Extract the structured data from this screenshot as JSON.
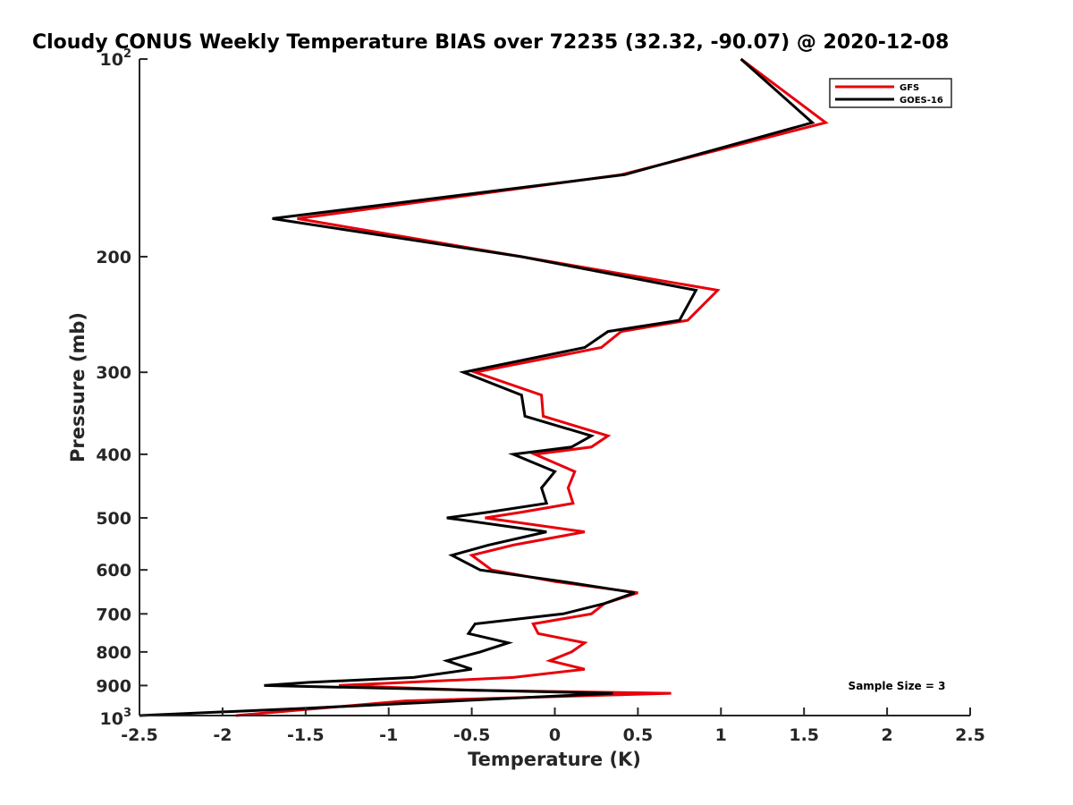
{
  "chart_data": {
    "type": "line",
    "title": "Cloudy CONUS Weekly Temperature BIAS over 72235 (32.32, -90.07) @ 2020-12-08",
    "xlabel": "Temperature (K)",
    "ylabel": "Pressure (mb)",
    "xlim": [
      -2.5,
      2.5
    ],
    "ylim": [
      100,
      1000
    ],
    "y_scale": "log",
    "y_reversed": true,
    "x_ticks": [
      -2.5,
      -2,
      -1.5,
      -1,
      -0.5,
      0,
      0.5,
      1,
      1.5,
      2,
      2.5
    ],
    "x_tick_labels": [
      "-2.5",
      "-2",
      "-1.5",
      "-1",
      "-0.5",
      "0",
      "0.5",
      "1",
      "1.5",
      "2",
      "2.5"
    ],
    "y_ticks": [
      200,
      300,
      400,
      500,
      600,
      700,
      800,
      900
    ],
    "y_tick_labels": [
      "200",
      "300",
      "400",
      "500",
      "600",
      "700",
      "800",
      "900"
    ],
    "y_tick_min": {
      "base": "10",
      "exp": "2"
    },
    "y_tick_max": {
      "base": "10",
      "exp": "3"
    },
    "annotation": "Sample Size = 3",
    "legend_position": "top-right",
    "series": [
      {
        "name": "GFS",
        "color": "#e8000b",
        "points": [
          [
            1.12,
            100
          ],
          [
            1.63,
            125
          ],
          [
            0.4,
            150
          ],
          [
            -1.55,
            175
          ],
          [
            -0.2,
            200
          ],
          [
            0.98,
            225
          ],
          [
            0.8,
            250
          ],
          [
            0.4,
            260
          ],
          [
            0.28,
            275
          ],
          [
            -0.48,
            300
          ],
          [
            -0.08,
            325
          ],
          [
            -0.07,
            350
          ],
          [
            0.32,
            375
          ],
          [
            0.22,
            390
          ],
          [
            -0.12,
            400
          ],
          [
            0.12,
            425
          ],
          [
            0.08,
            450
          ],
          [
            0.11,
            475
          ],
          [
            -0.2,
            490
          ],
          [
            -0.42,
            500
          ],
          [
            0.18,
            525
          ],
          [
            -0.25,
            550
          ],
          [
            -0.5,
            570
          ],
          [
            -0.38,
            600
          ],
          [
            0.0,
            625
          ],
          [
            0.5,
            650
          ],
          [
            0.3,
            675
          ],
          [
            0.22,
            700
          ],
          [
            -0.13,
            725
          ],
          [
            -0.1,
            750
          ],
          [
            0.18,
            775
          ],
          [
            0.1,
            800
          ],
          [
            -0.03,
            825
          ],
          [
            0.18,
            850
          ],
          [
            -0.25,
            875
          ],
          [
            -1.3,
            900
          ],
          [
            -0.5,
            915
          ],
          [
            0.7,
            925
          ],
          [
            -0.9,
            950
          ],
          [
            -1.92,
            1000
          ]
        ]
      },
      {
        "name": "GOES-16",
        "color": "#000000",
        "points": [
          [
            1.12,
            100
          ],
          [
            1.55,
            125
          ],
          [
            0.42,
            150
          ],
          [
            -1.7,
            175
          ],
          [
            -0.2,
            200
          ],
          [
            0.85,
            225
          ],
          [
            0.75,
            250
          ],
          [
            0.32,
            260
          ],
          [
            0.18,
            275
          ],
          [
            -0.55,
            300
          ],
          [
            -0.2,
            325
          ],
          [
            -0.18,
            350
          ],
          [
            0.22,
            375
          ],
          [
            0.1,
            390
          ],
          [
            -0.25,
            400
          ],
          [
            0.0,
            425
          ],
          [
            -0.08,
            450
          ],
          [
            -0.05,
            475
          ],
          [
            -0.4,
            490
          ],
          [
            -0.65,
            500
          ],
          [
            -0.05,
            525
          ],
          [
            -0.4,
            550
          ],
          [
            -0.62,
            570
          ],
          [
            -0.45,
            600
          ],
          [
            0.05,
            625
          ],
          [
            0.48,
            650
          ],
          [
            0.3,
            675
          ],
          [
            0.05,
            700
          ],
          [
            -0.48,
            725
          ],
          [
            -0.52,
            750
          ],
          [
            -0.28,
            775
          ],
          [
            -0.45,
            800
          ],
          [
            -0.65,
            825
          ],
          [
            -0.5,
            850
          ],
          [
            -0.85,
            875
          ],
          [
            -1.48,
            890
          ],
          [
            -1.75,
            900
          ],
          [
            0.35,
            925
          ],
          [
            -1.5,
            975
          ],
          [
            -2.5,
            1000
          ]
        ]
      }
    ]
  }
}
